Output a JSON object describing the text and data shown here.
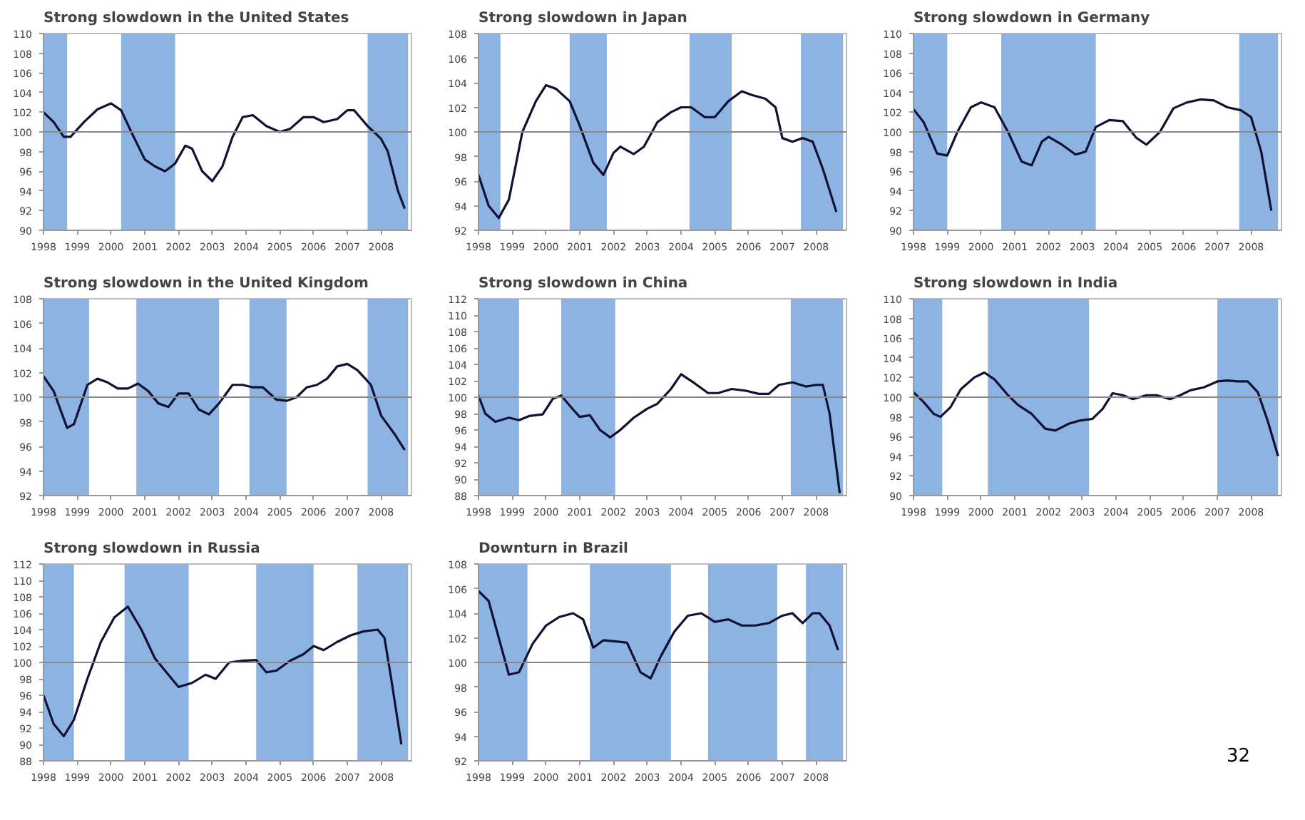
{
  "chart_data": [
    {
      "type": "line",
      "title": "Strong slowdown in the United States",
      "xlim": [
        1998,
        2008.9
      ],
      "xticks": [
        1998,
        1999,
        2000,
        2001,
        2002,
        2003,
        2004,
        2005,
        2006,
        2007,
        2008
      ],
      "ylim": [
        90,
        110
      ],
      "yticks": [
        90,
        92,
        94,
        96,
        98,
        100,
        102,
        104,
        106,
        108,
        110
      ],
      "ref_lines": [
        {
          "axis": "y",
          "value": 100,
          "color": "#888888"
        }
      ],
      "bands": [
        {
          "axis": "x",
          "from": 1998,
          "to": 1998.7,
          "color": "#8db3e2"
        },
        {
          "axis": "x",
          "from": 2000.3,
          "to": 2001.9,
          "color": "#8db3e2"
        },
        {
          "axis": "x",
          "from": 2007.6,
          "to": 2008.8,
          "color": "#8db3e2"
        }
      ],
      "series": [
        {
          "color": "#111133",
          "x": [
            1998.0,
            1998.3,
            1998.6,
            1998.8,
            1999.2,
            1999.6,
            2000.0,
            2000.3,
            2000.6,
            2001.0,
            2001.3,
            2001.6,
            2001.9,
            2002.2,
            2002.4,
            2002.7,
            2003.0,
            2003.3,
            2003.6,
            2003.9,
            2004.2,
            2004.6,
            2005.0,
            2005.3,
            2005.7,
            2006.0,
            2006.3,
            2006.7,
            2007.0,
            2007.2,
            2007.6,
            2008.0,
            2008.2,
            2008.5,
            2008.7
          ],
          "values": [
            102,
            101,
            99.5,
            99.5,
            101,
            102.3,
            102.9,
            102.2,
            100,
            97.2,
            96.5,
            96,
            96.8,
            98.6,
            98.3,
            96,
            95,
            96.5,
            99.5,
            101.5,
            101.7,
            100.6,
            100,
            100.3,
            101.5,
            101.5,
            101,
            101.3,
            102.2,
            102.2,
            100.6,
            99.3,
            98,
            94,
            92.2
          ]
        }
      ]
    },
    {
      "type": "line",
      "title": "Strong slowdown in Japan",
      "xlim": [
        1998,
        2008.9
      ],
      "xticks": [
        1998,
        1999,
        2000,
        2001,
        2002,
        2003,
        2004,
        2005,
        2006,
        2007,
        2008
      ],
      "ylim": [
        92,
        108
      ],
      "yticks": [
        92,
        94,
        96,
        98,
        100,
        102,
        104,
        106,
        108
      ],
      "ref_lines": [
        {
          "axis": "y",
          "value": 100,
          "color": "#888888"
        }
      ],
      "bands": [
        {
          "axis": "x",
          "from": 1998,
          "to": 1998.65,
          "color": "#8db3e2"
        },
        {
          "axis": "x",
          "from": 2000.7,
          "to": 2001.8,
          "color": "#8db3e2"
        },
        {
          "axis": "x",
          "from": 2004.25,
          "to": 2005.5,
          "color": "#8db3e2"
        },
        {
          "axis": "x",
          "from": 2007.55,
          "to": 2008.8,
          "color": "#8db3e2"
        }
      ],
      "series": [
        {
          "color": "#111133",
          "x": [
            1998.0,
            1998.3,
            1998.6,
            1998.9,
            1999.3,
            1999.7,
            2000.0,
            2000.3,
            2000.7,
            2001.0,
            2001.4,
            2001.7,
            2002.0,
            2002.2,
            2002.6,
            2002.9,
            2003.3,
            2003.7,
            2004.0,
            2004.3,
            2004.7,
            2005.0,
            2005.4,
            2005.8,
            2006.1,
            2006.5,
            2006.8,
            2007.0,
            2007.3,
            2007.6,
            2007.9,
            2008.2,
            2008.6
          ],
          "values": [
            96.5,
            94,
            93,
            94.5,
            100,
            102.5,
            103.8,
            103.5,
            102.5,
            100.5,
            97.5,
            96.5,
            98.3,
            98.8,
            98.2,
            98.8,
            100.8,
            101.6,
            102,
            102,
            101.2,
            101.2,
            102.5,
            103.3,
            103,
            102.7,
            102,
            99.5,
            99.2,
            99.5,
            99.2,
            97,
            93.5
          ]
        }
      ]
    },
    {
      "type": "line",
      "title": "Strong slowdown in Germany",
      "xlim": [
        1998,
        2008.9
      ],
      "xticks": [
        1998,
        1999,
        2000,
        2001,
        2002,
        2003,
        2004,
        2005,
        2006,
        2007,
        2008
      ],
      "ylim": [
        90,
        110
      ],
      "yticks": [
        90,
        92,
        94,
        96,
        98,
        100,
        102,
        104,
        106,
        108,
        110
      ],
      "ref_lines": [
        {
          "axis": "y",
          "value": 100,
          "color": "#888888"
        }
      ],
      "bands": [
        {
          "axis": "x",
          "from": 1998,
          "to": 1999.0,
          "color": "#8db3e2"
        },
        {
          "axis": "x",
          "from": 2000.6,
          "to": 2003.4,
          "color": "#8db3e2"
        },
        {
          "axis": "x",
          "from": 2007.65,
          "to": 2008.8,
          "color": "#8db3e2"
        }
      ],
      "series": [
        {
          "color": "#111133",
          "x": [
            1998.0,
            1998.3,
            1998.7,
            1999.0,
            1999.3,
            1999.7,
            2000.0,
            2000.4,
            2000.8,
            2001.2,
            2001.5,
            2001.8,
            2002.0,
            2002.4,
            2002.8,
            2003.1,
            2003.4,
            2003.8,
            2004.2,
            2004.6,
            2004.9,
            2005.3,
            2005.7,
            2006.1,
            2006.5,
            2006.9,
            2007.3,
            2007.7,
            2008.0,
            2008.3,
            2008.6
          ],
          "values": [
            102.3,
            101,
            97.8,
            97.6,
            100,
            102.5,
            103,
            102.5,
            100,
            97,
            96.6,
            99,
            99.5,
            98.7,
            97.7,
            98,
            100.5,
            101.2,
            101.1,
            99.4,
            98.7,
            100,
            102.4,
            103,
            103.3,
            103.2,
            102.5,
            102.2,
            101.5,
            98,
            92
          ]
        }
      ]
    },
    {
      "type": "line",
      "title": "Strong slowdown in the United Kingdom",
      "xlim": [
        1998,
        2008.9
      ],
      "xticks": [
        1998,
        1999,
        2000,
        2001,
        2002,
        2003,
        2004,
        2005,
        2006,
        2007,
        2008
      ],
      "ylim": [
        92,
        108
      ],
      "yticks": [
        92,
        94,
        96,
        98,
        100,
        102,
        104,
        106,
        108
      ],
      "ref_lines": [
        {
          "axis": "y",
          "value": 100,
          "color": "#888888"
        }
      ],
      "bands": [
        {
          "axis": "x",
          "from": 1998,
          "to": 1999.35,
          "color": "#8db3e2"
        },
        {
          "axis": "x",
          "from": 2000.75,
          "to": 2003.2,
          "color": "#8db3e2"
        },
        {
          "axis": "x",
          "from": 2004.1,
          "to": 2005.2,
          "color": "#8db3e2"
        },
        {
          "axis": "x",
          "from": 2007.6,
          "to": 2008.8,
          "color": "#8db3e2"
        }
      ],
      "series": [
        {
          "color": "#111133",
          "x": [
            1998.0,
            1998.3,
            1998.7,
            1998.9,
            1999.3,
            1999.6,
            1999.9,
            2000.2,
            2000.5,
            2000.8,
            2001.1,
            2001.4,
            2001.7,
            2002.0,
            2002.3,
            2002.6,
            2002.9,
            2003.2,
            2003.6,
            2003.9,
            2004.2,
            2004.5,
            2004.9,
            2005.2,
            2005.5,
            2005.8,
            2006.1,
            2006.4,
            2006.7,
            2007.0,
            2007.3,
            2007.7,
            2008.0,
            2008.4,
            2008.7
          ],
          "values": [
            101.7,
            100.5,
            97.5,
            97.8,
            101,
            101.5,
            101.2,
            100.7,
            100.7,
            101.1,
            100.5,
            99.5,
            99.2,
            100.3,
            100.3,
            99,
            98.6,
            99.5,
            101,
            101,
            100.8,
            100.8,
            99.8,
            99.7,
            100,
            100.8,
            101,
            101.5,
            102.5,
            102.7,
            102.2,
            101,
            98.5,
            97,
            95.7
          ]
        }
      ]
    },
    {
      "type": "line",
      "title": "Strong slowdown in China",
      "xlim": [
        1998,
        2008.9
      ],
      "xticks": [
        1998,
        1999,
        2000,
        2001,
        2002,
        2003,
        2004,
        2005,
        2006,
        2007,
        2008
      ],
      "ylim": [
        88,
        112
      ],
      "yticks": [
        88,
        90,
        92,
        94,
        96,
        98,
        100,
        102,
        104,
        106,
        108,
        110,
        112
      ],
      "ref_lines": [
        {
          "axis": "y",
          "value": 100,
          "color": "#888888"
        }
      ],
      "bands": [
        {
          "axis": "x",
          "from": 1998,
          "to": 1999.2,
          "color": "#8db3e2"
        },
        {
          "axis": "x",
          "from": 2000.45,
          "to": 2002.05,
          "color": "#8db3e2"
        },
        {
          "axis": "x",
          "from": 2007.25,
          "to": 2008.8,
          "color": "#8db3e2"
        }
      ],
      "series": [
        {
          "color": "#111133",
          "x": [
            1998.0,
            1998.2,
            1998.5,
            1998.9,
            1999.2,
            1999.5,
            1999.9,
            2000.2,
            2000.45,
            2000.8,
            2001.0,
            2001.3,
            2001.6,
            2001.9,
            2002.2,
            2002.6,
            2003.0,
            2003.3,
            2003.7,
            2004.0,
            2004.4,
            2004.8,
            2005.1,
            2005.5,
            2005.9,
            2006.3,
            2006.6,
            2006.9,
            2007.3,
            2007.7,
            2008.0,
            2008.2,
            2008.4,
            2008.7
          ],
          "values": [
            100.2,
            98,
            97,
            97.5,
            97.2,
            97.7,
            97.9,
            99.8,
            100.2,
            98.5,
            97.6,
            97.8,
            96,
            95.1,
            96,
            97.5,
            98.6,
            99.2,
            101,
            102.8,
            101.7,
            100.5,
            100.5,
            101,
            100.8,
            100.4,
            100.4,
            101.5,
            101.8,
            101.3,
            101.5,
            101.5,
            98,
            88.3
          ]
        }
      ]
    },
    {
      "type": "line",
      "title": "Strong slowdown in India",
      "xlim": [
        1998,
        2008.9
      ],
      "xticks": [
        1998,
        1999,
        2000,
        2001,
        2002,
        2003,
        2004,
        2005,
        2006,
        2007,
        2008
      ],
      "ylim": [
        90,
        110
      ],
      "yticks": [
        90,
        92,
        94,
        96,
        98,
        100,
        102,
        104,
        106,
        108,
        110
      ],
      "ref_lines": [
        {
          "axis": "y",
          "value": 100,
          "color": "#888888"
        }
      ],
      "bands": [
        {
          "axis": "x",
          "from": 1998,
          "to": 1998.85,
          "color": "#8db3e2"
        },
        {
          "axis": "x",
          "from": 2000.2,
          "to": 2003.2,
          "color": "#8db3e2"
        },
        {
          "axis": "x",
          "from": 2007.0,
          "to": 2008.8,
          "color": "#8db3e2"
        }
      ],
      "series": [
        {
          "color": "#111133",
          "x": [
            1998.0,
            1998.3,
            1998.6,
            1998.8,
            1999.1,
            1999.4,
            1999.8,
            2000.1,
            2000.4,
            2000.8,
            2001.1,
            2001.5,
            2001.9,
            2002.2,
            2002.6,
            2002.9,
            2003.3,
            2003.6,
            2003.9,
            2004.2,
            2004.5,
            2004.9,
            2005.2,
            2005.6,
            2005.9,
            2006.2,
            2006.6,
            2007.0,
            2007.3,
            2007.6,
            2007.9,
            2008.2,
            2008.5,
            2008.8
          ],
          "values": [
            100.5,
            99.5,
            98.3,
            98,
            99,
            100.8,
            102,
            102.5,
            101.8,
            100.2,
            99.2,
            98.3,
            96.8,
            96.6,
            97.3,
            97.6,
            97.8,
            98.8,
            100.4,
            100.2,
            99.8,
            100.2,
            100.2,
            99.8,
            100.2,
            100.7,
            101,
            101.6,
            101.7,
            101.6,
            101.6,
            100.5,
            97.5,
            94
          ]
        }
      ]
    },
    {
      "type": "line",
      "title": "Strong slowdown in Russia",
      "xlim": [
        1998,
        2008.9
      ],
      "xticks": [
        1998,
        1999,
        2000,
        2001,
        2002,
        2003,
        2004,
        2005,
        2006,
        2007,
        2008
      ],
      "ylim": [
        88,
        112
      ],
      "yticks": [
        88,
        90,
        92,
        94,
        96,
        98,
        100,
        102,
        104,
        106,
        108,
        110,
        112
      ],
      "ref_lines": [
        {
          "axis": "y",
          "value": 100,
          "color": "#888888"
        }
      ],
      "bands": [
        {
          "axis": "x",
          "from": 1998,
          "to": 1998.9,
          "color": "#8db3e2"
        },
        {
          "axis": "x",
          "from": 2000.4,
          "to": 2002.3,
          "color": "#8db3e2"
        },
        {
          "axis": "x",
          "from": 2004.3,
          "to": 2006.0,
          "color": "#8db3e2"
        },
        {
          "axis": "x",
          "from": 2007.3,
          "to": 2008.8,
          "color": "#8db3e2"
        }
      ],
      "series": [
        {
          "color": "#111133",
          "x": [
            1998.0,
            1998.3,
            1998.6,
            1998.9,
            1999.3,
            1999.7,
            2000.1,
            2000.5,
            2000.9,
            2001.3,
            2001.7,
            2002.0,
            2002.4,
            2002.8,
            2003.1,
            2003.5,
            2003.9,
            2004.3,
            2004.6,
            2004.9,
            2005.3,
            2005.7,
            2006.0,
            2006.3,
            2006.7,
            2007.1,
            2007.5,
            2007.9,
            2008.1,
            2008.3,
            2008.6
          ],
          "values": [
            96,
            92.5,
            91,
            93,
            98,
            102.5,
            105.5,
            106.8,
            104,
            100.5,
            98.5,
            97,
            97.5,
            98.5,
            98,
            100,
            100.2,
            100.3,
            98.8,
            99,
            100.2,
            101,
            102,
            101.5,
            102.5,
            103.3,
            103.8,
            104,
            103,
            98,
            90
          ]
        }
      ]
    },
    {
      "type": "line",
      "title": "Downturn in Brazil",
      "xlim": [
        1998,
        2008.9
      ],
      "xticks": [
        1998,
        1999,
        2000,
        2001,
        2002,
        2003,
        2004,
        2005,
        2006,
        2007,
        2008
      ],
      "ylim": [
        92,
        108
      ],
      "yticks": [
        92,
        94,
        96,
        98,
        100,
        102,
        104,
        106,
        108
      ],
      "ref_lines": [
        {
          "axis": "y",
          "value": 100,
          "color": "#888888"
        }
      ],
      "bands": [
        {
          "axis": "x",
          "from": 1998,
          "to": 1999.45,
          "color": "#8db3e2"
        },
        {
          "axis": "x",
          "from": 2001.3,
          "to": 2003.7,
          "color": "#8db3e2"
        },
        {
          "axis": "x",
          "from": 2004.8,
          "to": 2006.85,
          "color": "#8db3e2"
        },
        {
          "axis": "x",
          "from": 2007.7,
          "to": 2008.8,
          "color": "#8db3e2"
        }
      ],
      "annotations": [
        "32"
      ],
      "series": [
        {
          "color": "#111133",
          "x": [
            1998.0,
            1998.3,
            1998.6,
            1998.9,
            1999.2,
            1999.6,
            2000.0,
            2000.4,
            2000.8,
            2001.1,
            2001.4,
            2001.7,
            2002.1,
            2002.4,
            2002.8,
            2003.1,
            2003.4,
            2003.8,
            2004.2,
            2004.6,
            2005.0,
            2005.4,
            2005.8,
            2006.2,
            2006.6,
            2007.0,
            2007.3,
            2007.6,
            2007.9,
            2008.1,
            2008.4,
            2008.65
          ],
          "values": [
            105.8,
            105,
            102,
            99,
            99.2,
            101.5,
            103,
            103.7,
            104,
            103.5,
            101.2,
            101.8,
            101.7,
            101.6,
            99.2,
            98.7,
            100.5,
            102.5,
            103.8,
            104,
            103.3,
            103.5,
            103,
            103,
            103.2,
            103.8,
            104,
            103.2,
            104,
            104,
            103,
            101
          ]
        }
      ]
    }
  ]
}
